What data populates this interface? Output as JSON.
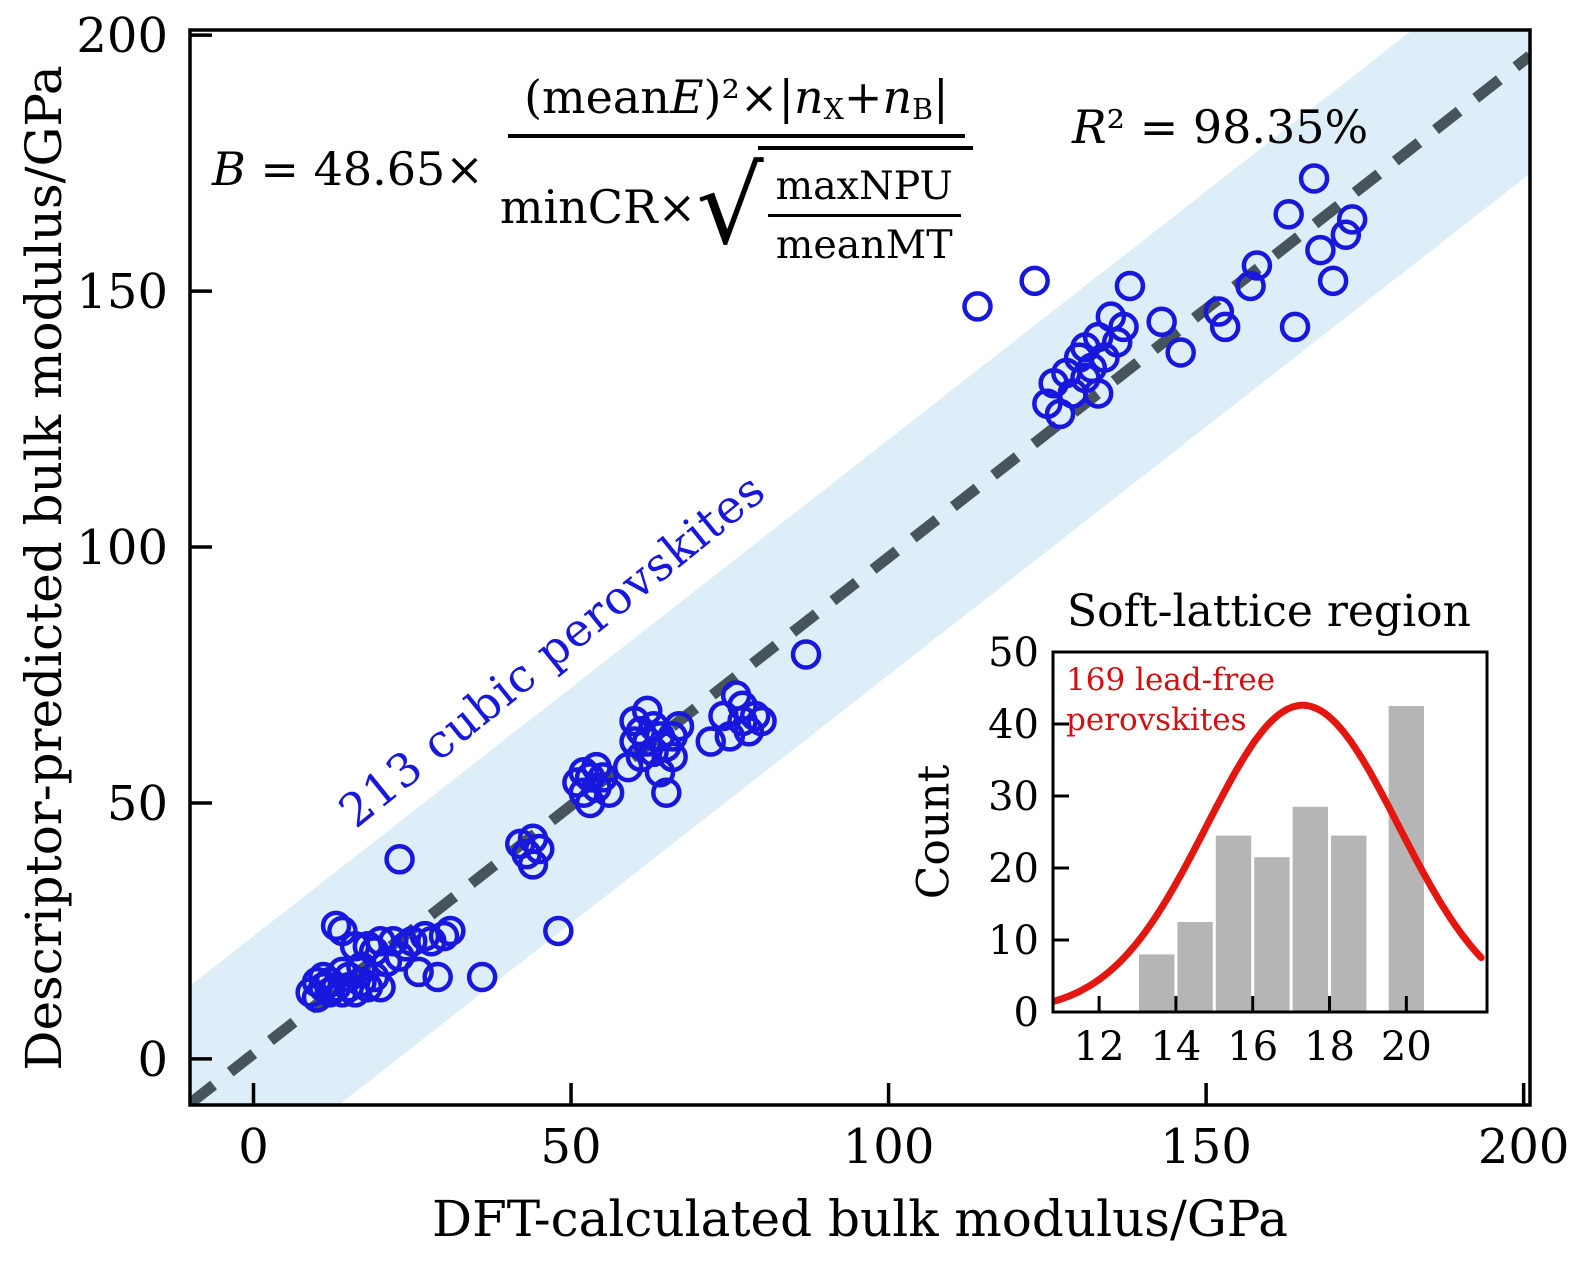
{
  "figure": {
    "background": "#ffffff",
    "accent_blue": "#1717dd",
    "band_color": "#ddeef8",
    "line_color": "#47545c",
    "bar_color": "#b5b5b5",
    "curve_color": "#e3170f",
    "note_red": "#d40f0f",
    "text_color": "#000000"
  },
  "annotations": {
    "formula": {
      "lhs_var": "B",
      "lhs_rest": " = 48.65×",
      "num_p1": "(mean",
      "num_var1": "E",
      "num_p2": ")²×|",
      "num_var2": "n",
      "num_sub1": "X",
      "num_p3": "+",
      "num_var3": "n",
      "num_sub2": "B",
      "num_p4": "|",
      "den_prefix": "minCR×",
      "radical": "√",
      "sqrt_numerator": "maxNPU",
      "sqrt_denominator": "meanMT"
    },
    "r2_var": "R",
    "r2_rest": "² = 98.35%",
    "scatter_label": "213 cubic perovskites",
    "inset_title": "Soft-lattice region",
    "inset_note_line1": "169 lead-free",
    "inset_note_line2": "perovskites"
  },
  "chart_data": [
    {
      "id": "main",
      "type": "scatter",
      "xlabel": "DFT-calculated bulk modulus/GPa",
      "ylabel": "Descriptor-predicted bulk modulus/GPa",
      "xlim": [
        -10,
        201
      ],
      "ylim": [
        -9,
        201
      ],
      "xticks": [
        0,
        50,
        100,
        150,
        200
      ],
      "yticks": [
        0,
        50,
        100,
        150,
        200
      ],
      "grid": false,
      "identity_line": {
        "slope": 0.97,
        "intercept": 1,
        "style": "dashed"
      },
      "confidence_band_half_width": 23,
      "n_points_label": "213 cubic perovskites",
      "points": [
        [
          9,
          13
        ],
        [
          10,
          12
        ],
        [
          10,
          15
        ],
        [
          11,
          14
        ],
        [
          11,
          16
        ],
        [
          12,
          13
        ],
        [
          12,
          15
        ],
        [
          13,
          14
        ],
        [
          13,
          26
        ],
        [
          14,
          13
        ],
        [
          14,
          17
        ],
        [
          14,
          25
        ],
        [
          15,
          14
        ],
        [
          15,
          16
        ],
        [
          16,
          13
        ],
        [
          16,
          22
        ],
        [
          17,
          15
        ],
        [
          17,
          18
        ],
        [
          18,
          14
        ],
        [
          18,
          22
        ],
        [
          19,
          16
        ],
        [
          19,
          21
        ],
        [
          20,
          14
        ],
        [
          20,
          23
        ],
        [
          21,
          19
        ],
        [
          22,
          23
        ],
        [
          23,
          20
        ],
        [
          23,
          39
        ],
        [
          24,
          22
        ],
        [
          25,
          23
        ],
        [
          26,
          17
        ],
        [
          27,
          24
        ],
        [
          28,
          23
        ],
        [
          29,
          16
        ],
        [
          30,
          24
        ],
        [
          31,
          25
        ],
        [
          36,
          16
        ],
        [
          48,
          25
        ],
        [
          42,
          42
        ],
        [
          43,
          40
        ],
        [
          44,
          38
        ],
        [
          44,
          43
        ],
        [
          45,
          41
        ],
        [
          51,
          54
        ],
        [
          52,
          52
        ],
        [
          52,
          56
        ],
        [
          53,
          50
        ],
        [
          53,
          55
        ],
        [
          54,
          53
        ],
        [
          54,
          57
        ],
        [
          55,
          55
        ],
        [
          56,
          52
        ],
        [
          59,
          57
        ],
        [
          60,
          62
        ],
        [
          60,
          66
        ],
        [
          61,
          59
        ],
        [
          61,
          64
        ],
        [
          62,
          62
        ],
        [
          62,
          68
        ],
        [
          63,
          60
        ],
        [
          63,
          65
        ],
        [
          64,
          56
        ],
        [
          64,
          63
        ],
        [
          65,
          52
        ],
        [
          65,
          61
        ],
        [
          66,
          59
        ],
        [
          66,
          63
        ],
        [
          67,
          65
        ],
        [
          72,
          62
        ],
        [
          74,
          67
        ],
        [
          75,
          63
        ],
        [
          76,
          71
        ],
        [
          77,
          66
        ],
        [
          77,
          69
        ],
        [
          78,
          64
        ],
        [
          79,
          67
        ],
        [
          80,
          66
        ],
        [
          87,
          79
        ],
        [
          114,
          147
        ],
        [
          123,
          152
        ],
        [
          125,
          128
        ],
        [
          126,
          132
        ],
        [
          127,
          126
        ],
        [
          128,
          134
        ],
        [
          129,
          130
        ],
        [
          130,
          137
        ],
        [
          131,
          133
        ],
        [
          131,
          139
        ],
        [
          132,
          135
        ],
        [
          133,
          130
        ],
        [
          133,
          141
        ],
        [
          134,
          137
        ],
        [
          135,
          145
        ],
        [
          136,
          140
        ],
        [
          137,
          143
        ],
        [
          138,
          151
        ],
        [
          143,
          144
        ],
        [
          146,
          138
        ],
        [
          152,
          146
        ],
        [
          153,
          143
        ],
        [
          157,
          151
        ],
        [
          158,
          155
        ],
        [
          163,
          165
        ],
        [
          164,
          143
        ],
        [
          167,
          172
        ],
        [
          168,
          158
        ],
        [
          170,
          152
        ],
        [
          172,
          161
        ],
        [
          173,
          164
        ]
      ]
    },
    {
      "id": "inset",
      "type": "bar",
      "title": "Soft-lattice region",
      "xlabel": "",
      "ylabel": "Count",
      "xlim": [
        10.8,
        22.1
      ],
      "ylim": [
        0,
        50
      ],
      "xticks": [
        12,
        14,
        16,
        18,
        20
      ],
      "yticks": [
        0,
        10,
        20,
        30,
        40,
        50
      ],
      "bars": {
        "centers": [
          13.5,
          14.5,
          15.5,
          16.5,
          17.5,
          18.5,
          20
        ],
        "widths": [
          1,
          1,
          1,
          1,
          1,
          1,
          1
        ],
        "heights": [
          8,
          12.5,
          24.5,
          21.5,
          28.5,
          24.5,
          42.5
        ]
      },
      "curve": {
        "shape": "gaussian",
        "amplitude": 42.6,
        "mean": 17.3,
        "sigma": 2.5
      }
    }
  ]
}
